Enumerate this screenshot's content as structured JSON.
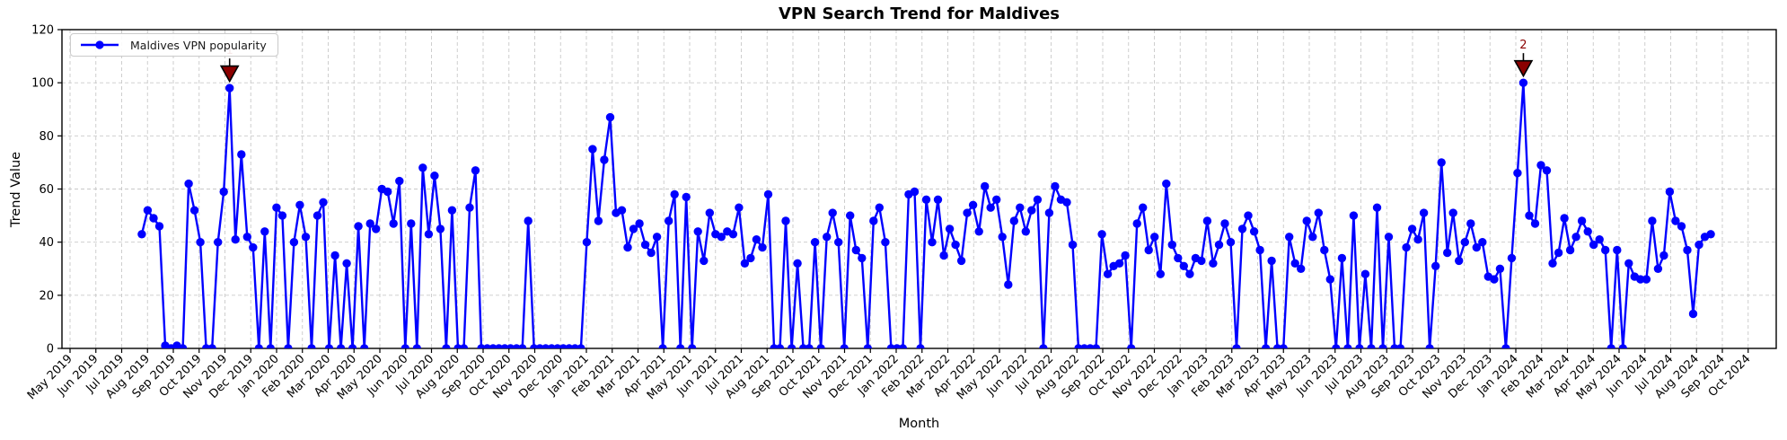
{
  "chart_data": {
    "type": "line",
    "title": "VPN Search Trend for Maldives",
    "xlabel": "Month",
    "ylabel": "Trend Value",
    "ylim": [
      0,
      120
    ],
    "y_ticks": [
      0,
      20,
      40,
      60,
      80,
      100,
      120
    ],
    "grid": true,
    "legend_position": "upper left",
    "x_tick_labels": [
      "May 2019",
      "Jun 2019",
      "Jul 2019",
      "Aug 2019",
      "Sep 2019",
      "Oct 2019",
      "Nov 2019",
      "Dec 2019",
      "Jan 2020",
      "Feb 2020",
      "Mar 2020",
      "Apr 2020",
      "May 2020",
      "Jun 2020",
      "Jul 2020",
      "Aug 2020",
      "Sep 2020",
      "Oct 2020",
      "Nov 2020",
      "Dec 2020",
      "Jan 2021",
      "Feb 2021",
      "Mar 2021",
      "Apr 2021",
      "May 2021",
      "Jun 2021",
      "Jul 2021",
      "Aug 2021",
      "Sep 2021",
      "Oct 2021",
      "Nov 2021",
      "Dec 2021",
      "Jan 2022",
      "Feb 2022",
      "Mar 2022",
      "Apr 2022",
      "May 2022",
      "Jun 2022",
      "Jul 2022",
      "Aug 2022",
      "Sep 2022",
      "Oct 2022",
      "Nov 2022",
      "Dec 2022",
      "Jan 2023",
      "Feb 2023",
      "Mar 2023",
      "Apr 2023",
      "May 2023",
      "Jun 2023",
      "Jul 2023",
      "Aug 2023",
      "Sep 2023",
      "Oct 2023",
      "Nov 2023",
      "Dec 2023",
      "Jan 2024",
      "Feb 2024",
      "Mar 2024",
      "Apr 2024",
      "May 2024",
      "Jun 2024",
      "Jul 2024",
      "Aug 2024",
      "Sep 2024",
      "Oct 2024"
    ],
    "series": [
      {
        "name": "Maldives VPN popularity",
        "marker": "circle",
        "x_start_tick_index": 2.78,
        "x_end_tick_index": 63.55,
        "values": [
          43,
          52,
          49,
          46,
          1,
          0,
          1,
          0,
          62,
          52,
          40,
          0,
          0,
          40,
          59,
          98,
          41,
          73,
          42,
          38,
          0,
          44,
          0,
          53,
          50,
          0,
          40,
          54,
          42,
          0,
          50,
          55,
          0,
          35,
          0,
          32,
          0,
          46,
          0,
          47,
          45,
          60,
          59,
          47,
          63,
          0,
          47,
          0,
          68,
          43,
          65,
          45,
          0,
          52,
          0,
          0,
          53,
          67,
          0,
          0,
          0,
          0,
          0,
          0,
          0,
          0,
          48,
          0,
          0,
          0,
          0,
          0,
          0,
          0,
          0,
          0,
          40,
          75,
          48,
          71,
          87,
          51,
          52,
          38,
          45,
          47,
          39,
          36,
          42,
          0,
          48,
          58,
          0,
          57,
          0,
          44,
          33,
          51,
          43,
          42,
          44,
          43,
          53,
          32,
          34,
          41,
          38,
          58,
          0,
          0,
          48,
          0,
          32,
          0,
          0,
          40,
          0,
          42,
          51,
          40,
          0,
          50,
          37,
          34,
          0,
          48,
          53,
          40,
          0,
          0,
          0,
          58,
          59,
          0,
          56,
          40,
          56,
          35,
          45,
          39,
          33,
          51,
          54,
          44,
          61,
          53,
          56,
          42,
          24,
          48,
          53,
          44,
          52,
          56,
          0,
          51,
          61,
          56,
          55,
          39,
          0,
          0,
          0,
          0,
          43,
          28,
          31,
          32,
          35,
          0,
          47,
          53,
          37,
          42,
          28,
          62,
          39,
          34,
          31,
          28,
          34,
          33,
          48,
          32,
          39,
          47,
          40,
          0,
          45,
          50,
          44,
          37,
          0,
          33,
          0,
          0,
          42,
          32,
          30,
          48,
          42,
          51,
          37,
          26,
          0,
          34,
          0,
          50,
          0,
          28,
          0,
          53,
          0,
          42,
          0,
          0,
          38,
          45,
          41,
          51,
          0,
          31,
          70,
          36,
          51,
          33,
          40,
          47,
          38,
          40,
          27,
          26,
          30,
          0,
          34,
          66,
          100,
          50,
          47,
          69,
          67,
          32,
          36,
          49,
          37,
          42,
          48,
          44,
          39,
          41,
          37,
          0,
          37,
          0,
          32,
          27,
          26,
          26,
          48,
          30,
          35,
          59,
          48,
          46,
          37,
          13,
          39,
          42,
          43
        ]
      }
    ],
    "annotations": [
      {
        "label": "1",
        "point_index": 15,
        "value": 98
      },
      {
        "label": "2",
        "point_index": 236,
        "value": 100
      }
    ]
  },
  "colors": {
    "line": "#0000ff",
    "marker": "#0000ff",
    "annotation_fill": "#8b0000",
    "annotation_edge": "#000000",
    "annotation_text": "#8b0000",
    "grid": "#c9c9c9",
    "spine": "#000000",
    "tick_text": "#000000"
  }
}
